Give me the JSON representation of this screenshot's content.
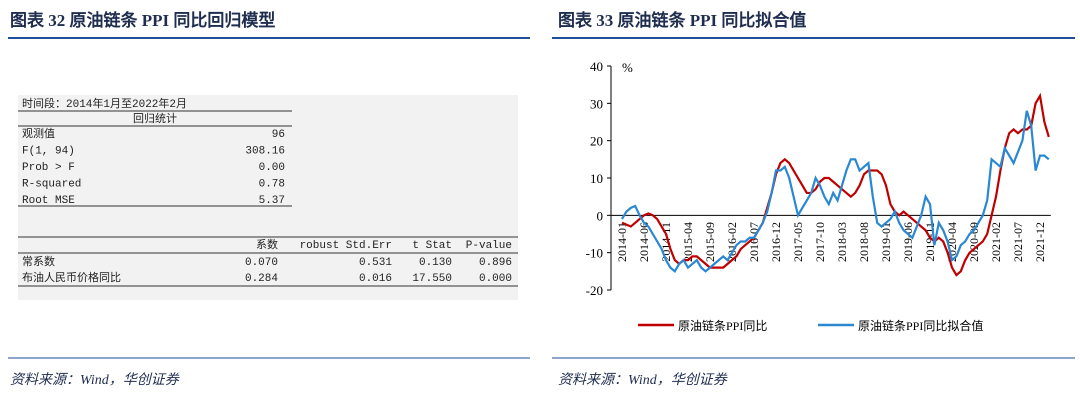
{
  "left": {
    "title": "图表 32   原油链条 PPI 同比回归模型",
    "table": {
      "period": "时间段：2014年1月至2022年2月",
      "section": "回归统计",
      "stats": [
        [
          "观测值",
          "96"
        ],
        [
          "F(1, 94)",
          "308.16"
        ],
        [
          "Prob > F",
          "0.00"
        ],
        [
          "R-squared",
          "0.78"
        ],
        [
          "Root MSE",
          "5.37"
        ]
      ],
      "header": [
        "系数",
        "robust Std.Err",
        "t Stat",
        "P-value"
      ],
      "rows": [
        [
          "常系数",
          "0.070",
          "0.531",
          "0.130",
          "0.896"
        ],
        [
          "布油人民币价格同比",
          "0.284",
          "0.016",
          "17.550",
          "0.000"
        ]
      ]
    },
    "source": "资料来源：Wind，华创证券"
  },
  "right": {
    "title": "图表 33   原油链条 PPI 同比拟合值",
    "source": "资料来源：Wind，华创证券"
  },
  "chart_data": {
    "type": "line",
    "y_label": "%",
    "categories": [
      "2014-01",
      null,
      null,
      null,
      null,
      "2014-06",
      null,
      null,
      null,
      null,
      "2014-11",
      null,
      null,
      null,
      null,
      "2015-04",
      null,
      null,
      null,
      null,
      "2015-09",
      null,
      null,
      null,
      null,
      "2016-02",
      null,
      null,
      null,
      null,
      "2016-07",
      null,
      null,
      null,
      null,
      "2016-12",
      null,
      null,
      null,
      null,
      "2017-05",
      null,
      null,
      null,
      null,
      "2017-10",
      null,
      null,
      null,
      null,
      "2018-03",
      null,
      null,
      null,
      null,
      "2018-08",
      null,
      null,
      null,
      null,
      "2019-01",
      null,
      null,
      null,
      null,
      "2019-06",
      null,
      null,
      null,
      null,
      "2019-11",
      null,
      null,
      null,
      null,
      "2020-04",
      null,
      null,
      null,
      null,
      "2020-09",
      null,
      null,
      null,
      null,
      "2021-02",
      null,
      null,
      null,
      null,
      "2021-07",
      null,
      null,
      null,
      null,
      "2021-12",
      null,
      null
    ],
    "series": [
      {
        "name": "原油链条PPI同比",
        "color": "#c00000",
        "values": [
          -2,
          -2.5,
          -3,
          -2,
          -1,
          0,
          0.5,
          0,
          -1,
          -3,
          -5,
          -9,
          -12,
          -13,
          -12,
          -12,
          -11,
          -11,
          -12,
          -13,
          -14,
          -14,
          -14,
          -14,
          -13,
          -12,
          -11,
          -9,
          -8,
          -7,
          -6,
          -4,
          -2,
          2,
          6,
          11,
          14,
          15,
          14,
          12,
          10,
          8,
          6,
          6,
          7,
          9,
          10,
          10,
          9,
          8,
          7,
          6,
          5,
          6,
          8,
          11,
          12,
          12,
          12,
          11,
          8,
          3,
          1,
          0,
          1,
          0,
          -1,
          -2,
          -3,
          -4,
          -6,
          -7,
          -6,
          -7,
          -10,
          -14,
          -16,
          -15,
          -12,
          -10,
          -9,
          -8,
          -7,
          -5,
          0,
          5,
          12,
          18,
          22,
          23,
          22,
          23,
          23,
          24,
          30,
          32,
          25,
          21
        ]
      },
      {
        "name": "原油链条PPI同比拟合值",
        "color": "#2a88d2",
        "values": [
          -1,
          1,
          2,
          2.5,
          0,
          -2,
          -3,
          -5,
          -7,
          -9,
          -12,
          -14,
          -15,
          -13,
          -12,
          -14,
          -13,
          -12,
          -14,
          -15,
          -14,
          -13,
          -12,
          -11,
          -12,
          -10,
          -8,
          -7,
          -7,
          -6,
          -6,
          -4,
          -2,
          1,
          6,
          12,
          12,
          13,
          10,
          5,
          0,
          2,
          4,
          6,
          10,
          8,
          5,
          3,
          6,
          4,
          8,
          12,
          15,
          15,
          12,
          13,
          14,
          5,
          -2,
          -3,
          -2,
          -1,
          1,
          -2,
          -4,
          -5,
          -6,
          -3,
          0,
          5,
          3,
          -8,
          -2,
          -4,
          -7,
          -12,
          -11,
          -8,
          -7,
          -5,
          -4,
          -2,
          0,
          4,
          15,
          14,
          13,
          18,
          16,
          14,
          17,
          20,
          28,
          24,
          12,
          16,
          16,
          15
        ]
      }
    ],
    "ylim": [
      -20,
      40
    ],
    "yticks": [
      -20,
      -10,
      0,
      10,
      20,
      30,
      40
    ],
    "legend": "bottom"
  }
}
